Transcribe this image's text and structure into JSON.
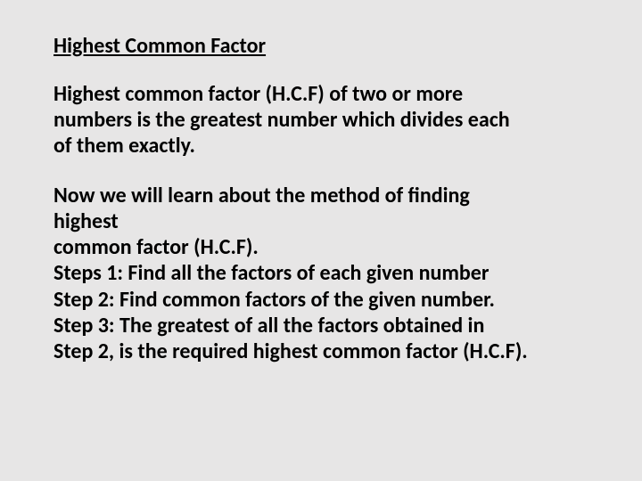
{
  "slide": {
    "background_color": "#e7e6e6",
    "text_color": "#000000",
    "font_family": "Calibri",
    "title": {
      "text": "Highest Common Factor",
      "fontsize": 24,
      "bold": true,
      "underline": true
    },
    "paragraphs": [
      {
        "lines": [
          "Highest common factor (H.C.F) of two or more",
          "numbers is the greatest number which divides each",
          "of them exactly."
        ],
        "fontsize": 24,
        "bold": true
      },
      {
        "lines": [
          "Now we will learn about the method of finding",
          "highest",
          "common factor (H.C.F).",
          "Steps 1: Find all the factors of each given number",
          "Step 2: Find common factors of the given number.",
          "Step 3: The greatest of all the factors obtained in",
          "Step 2, is the required highest common factor (H.C.F)."
        ],
        "fontsize": 24,
        "bold": true
      }
    ]
  }
}
